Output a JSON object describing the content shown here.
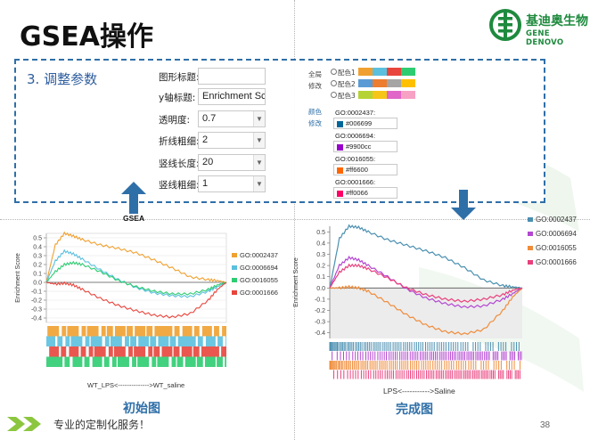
{
  "slide": {
    "title": "GSEA操作",
    "step": "3. 调整参数",
    "footer": "专业的定制化服务！",
    "page_number": "38",
    "logo_cn": "基迪奥生物",
    "logo_en": "GENE DENOVO"
  },
  "form": {
    "fields": [
      {
        "label": "图形标题:",
        "value": "",
        "kind": "text"
      },
      {
        "label": "y轴标题:",
        "value": "Enrichment Scor",
        "kind": "text"
      },
      {
        "label": "透明度:",
        "value": "0.7",
        "kind": "select"
      },
      {
        "label": "折线粗细:",
        "value": "2",
        "kind": "select"
      },
      {
        "label": "竖线长度:",
        "value": "20",
        "kind": "select"
      },
      {
        "label": "竖线粗细:",
        "value": "1",
        "kind": "select"
      }
    ]
  },
  "palette": {
    "global_label": "全局",
    "modify_label": "修改",
    "color_label": "颜色",
    "modify2_label": "修改",
    "options": [
      {
        "label": "配色1",
        "colors": [
          "#f0a030",
          "#5bc0de",
          "#e8453c",
          "#2ecc71"
        ]
      },
      {
        "label": "配色2",
        "colors": [
          "#5b9bd5",
          "#ed7d31",
          "#a5a5a5",
          "#ffc000"
        ]
      },
      {
        "label": "配色3",
        "colors": [
          "#b5d334",
          "#f5c518",
          "#e066c8",
          "#f7a1c4"
        ]
      }
    ],
    "go_colors": [
      {
        "go": "GO:0002437:",
        "hex": "#006699"
      },
      {
        "go": "GO:0006694:",
        "hex": "#9900cc"
      },
      {
        "go": "GO:0016055:",
        "hex": "#ff6600"
      },
      {
        "go": "GO:0001666:",
        "hex": "#ff0066"
      }
    ]
  },
  "charts": {
    "left": {
      "top_label": "GSEA",
      "ylabel": "Enrichment Score",
      "xlabel": "WT_LPS<-------------->WT_saline",
      "caption": "初始图"
    },
    "right": {
      "ylabel": "Enrichment Score",
      "xlabel": "LPS<----------->Saline",
      "caption": "完成图"
    }
  },
  "chart_data": [
    {
      "type": "line",
      "title": "GSEA",
      "xlabel": "WT_LPS<-------------->WT_saline",
      "ylabel": "Enrichment Score",
      "ylim": [
        -0.45,
        0.55
      ],
      "yticks": [
        0.5,
        0.4,
        0.3,
        0.2,
        0.1,
        0.0,
        -0.1,
        -0.2,
        -0.3,
        -0.4
      ],
      "legend_position": "right",
      "x": [
        0,
        0.05,
        0.1,
        0.15,
        0.2,
        0.3,
        0.4,
        0.5,
        0.6,
        0.7,
        0.8,
        0.9,
        0.95,
        1.0
      ],
      "series": [
        {
          "name": "GO:0002437",
          "color": "#f0a030",
          "values": [
            0,
            0.42,
            0.55,
            0.52,
            0.48,
            0.42,
            0.38,
            0.33,
            0.25,
            0.16,
            0.06,
            0.03,
            0.02,
            0
          ]
        },
        {
          "name": "GO:0006694",
          "color": "#5bc0de",
          "values": [
            0,
            0.24,
            0.35,
            0.32,
            0.26,
            0.14,
            0.03,
            -0.06,
            -0.12,
            -0.15,
            -0.16,
            -0.1,
            -0.05,
            0
          ]
        },
        {
          "name": "GO:0016055",
          "color": "#2ecc71",
          "values": [
            0,
            0.12,
            0.2,
            0.22,
            0.2,
            0.12,
            0.02,
            -0.05,
            -0.1,
            -0.13,
            -0.13,
            -0.08,
            -0.03,
            0
          ]
        },
        {
          "name": "GO:0001666",
          "color": "#e8453c",
          "values": [
            0,
            -0.02,
            -0.01,
            -0.03,
            -0.08,
            -0.18,
            -0.26,
            -0.32,
            -0.37,
            -0.39,
            -0.35,
            -0.2,
            -0.08,
            0
          ]
        }
      ],
      "rug_colors": [
        "#f0a030",
        "#5bc0de",
        "#e8453c",
        "#2ecc71"
      ]
    },
    {
      "type": "line",
      "xlabel": "LPS<----------->Saline",
      "ylabel": "Enrichment Score",
      "ylim": [
        -0.45,
        0.55
      ],
      "yticks": [
        0.5,
        0.4,
        0.3,
        0.2,
        0.1,
        0.0,
        -0.1,
        -0.2,
        -0.3,
        -0.4
      ],
      "legend_position": "right",
      "x": [
        0,
        0.05,
        0.1,
        0.15,
        0.2,
        0.3,
        0.4,
        0.5,
        0.6,
        0.7,
        0.8,
        0.9,
        0.95,
        1.0
      ],
      "series": [
        {
          "name": "GO:0002437",
          "color": "#4a8fb0",
          "values": [
            0,
            0.44,
            0.55,
            0.54,
            0.5,
            0.43,
            0.38,
            0.33,
            0.27,
            0.18,
            0.07,
            0.02,
            0.01,
            0
          ]
        },
        {
          "name": "GO:0006694",
          "color": "#b447d1",
          "values": [
            0,
            0.2,
            0.27,
            0.25,
            0.2,
            0.1,
            -0.01,
            -0.09,
            -0.14,
            -0.17,
            -0.16,
            -0.1,
            -0.05,
            0
          ]
        },
        {
          "name": "GO:0016055",
          "color": "#f08c3a",
          "values": [
            0,
            0.0,
            0.01,
            0.0,
            -0.03,
            -0.13,
            -0.24,
            -0.33,
            -0.39,
            -0.41,
            -0.37,
            -0.2,
            -0.08,
            0
          ]
        },
        {
          "name": "GO:0001666",
          "color": "#e8407c",
          "values": [
            0,
            0.14,
            0.2,
            0.2,
            0.17,
            0.09,
            0.0,
            -0.06,
            -0.1,
            -0.12,
            -0.1,
            -0.06,
            -0.02,
            0
          ]
        }
      ],
      "rug_colors": [
        "#4a8fb0",
        "#b447d1",
        "#f08c3a",
        "#e8407c"
      ]
    }
  ]
}
